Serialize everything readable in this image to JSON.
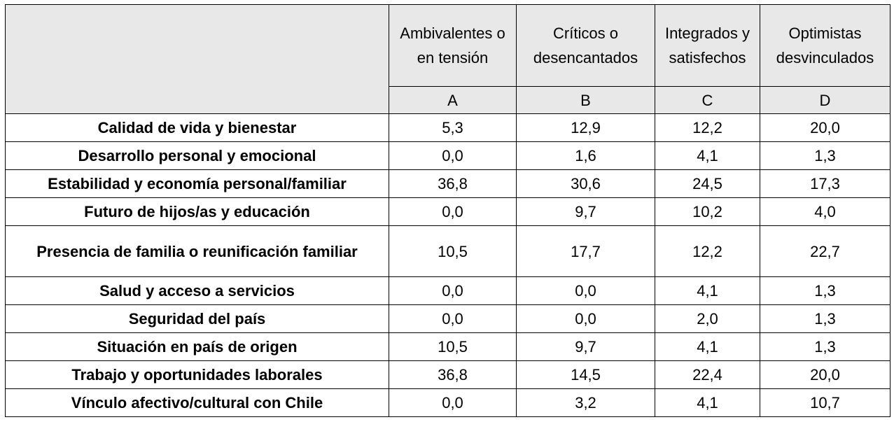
{
  "table": {
    "corner_label": "",
    "columns": [
      {
        "name": "Ambivalentes o en tensión",
        "letter": "A"
      },
      {
        "name": "Críticos o desencantados",
        "letter": "B"
      },
      {
        "name": "Integrados y satisfechos",
        "letter": "C"
      },
      {
        "name": "Optimistas desvinculados",
        "letter": "D"
      }
    ],
    "rows": [
      {
        "label": "Calidad de vida y bienestar",
        "values": [
          "5,3",
          "12,9",
          "12,2",
          "20,0"
        ]
      },
      {
        "label": "Desarrollo personal y emocional",
        "values": [
          "0,0",
          "1,6",
          "4,1",
          "1,3"
        ]
      },
      {
        "label": "Estabilidad y economía personal/familiar",
        "values": [
          "36,8",
          "30,6",
          "24,5",
          "17,3"
        ]
      },
      {
        "label": "Futuro de hijos/as y educación",
        "values": [
          "0,0",
          "9,7",
          "10,2",
          "4,0"
        ]
      },
      {
        "label": "Presencia de familia o reunificación familiar",
        "values": [
          "10,5",
          "17,7",
          "12,2",
          "22,7"
        ]
      },
      {
        "label": "Salud y acceso a servicios",
        "values": [
          "0,0",
          "0,0",
          "4,1",
          "1,3"
        ]
      },
      {
        "label": "Seguridad del país",
        "values": [
          "0,0",
          "0,0",
          "2,0",
          "1,3"
        ]
      },
      {
        "label": "Situación en país de origen",
        "values": [
          "10,5",
          "9,7",
          "4,1",
          "1,3"
        ]
      },
      {
        "label": "Trabajo y oportunidades laborales",
        "values": [
          "36,8",
          "14,5",
          "22,4",
          "20,0"
        ]
      },
      {
        "label": "Vínculo afectivo/cultural con Chile",
        "values": [
          "0,0",
          "3,2",
          "4,1",
          "10,7"
        ]
      }
    ]
  }
}
